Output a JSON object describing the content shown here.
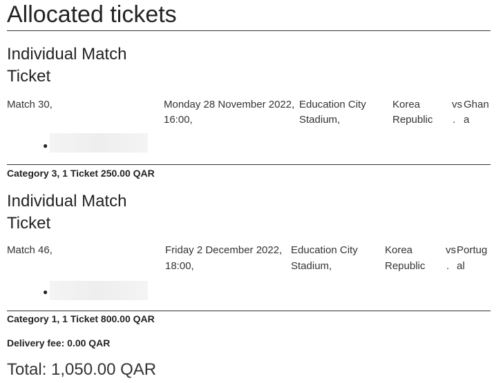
{
  "title": "Allocated tickets",
  "tickets": [
    {
      "type": "Individual Match Ticket",
      "match": "Match 30,",
      "date": "Monday 28 November 2022,",
      "time": "16:00,",
      "venue1": "Education City",
      "venue2": "Stadium,",
      "team1a": "Korea",
      "team1b": "Republic",
      "vs": "vs",
      "dot": ".",
      "team2a": "Ghan",
      "team2b": "a",
      "summary": "Category 3, 1 Ticket 250.00 QAR"
    },
    {
      "type": "Individual Match Ticket",
      "match": "Match 46,",
      "date": "Friday 2 December 2022,",
      "time": "18:00,",
      "venue1": "Education City",
      "venue2": "Stadium,",
      "team1a": "Korea",
      "team1b": "Republic",
      "vs": "vs",
      "dot": ".",
      "team2a": "Portug",
      "team2b": "al",
      "summary": "Category 1, 1 Ticket 800.00 QAR"
    }
  ],
  "delivery": "Delivery fee: 0.00 QAR",
  "total": "Total: 1,050.00 QAR"
}
